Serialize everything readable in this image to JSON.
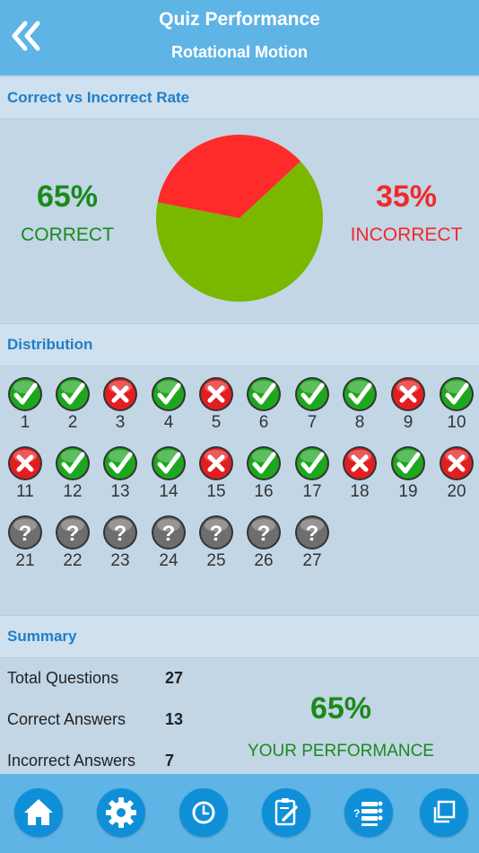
{
  "header": {
    "title": "Quiz Performance",
    "subtitle": "Rotational Motion",
    "back_icon": "double-chevron-left-icon"
  },
  "rate": {
    "section_title": "Correct vs Incorrect Rate",
    "correct_pct": "65%",
    "correct_label": "CORRECT",
    "incorrect_pct": "35%",
    "incorrect_label": "INCORRECT",
    "correct_fraction": 0.65,
    "colors": {
      "correct": "#7ab800",
      "incorrect": "#ff2a2a"
    }
  },
  "distribution": {
    "section_title": "Distribution",
    "items": [
      {
        "n": "1",
        "s": "correct"
      },
      {
        "n": "2",
        "s": "correct"
      },
      {
        "n": "3",
        "s": "incorrect"
      },
      {
        "n": "4",
        "s": "correct"
      },
      {
        "n": "5",
        "s": "incorrect"
      },
      {
        "n": "6",
        "s": "correct"
      },
      {
        "n": "7",
        "s": "correct"
      },
      {
        "n": "8",
        "s": "correct"
      },
      {
        "n": "9",
        "s": "incorrect"
      },
      {
        "n": "10",
        "s": "correct"
      },
      {
        "n": "11",
        "s": "incorrect"
      },
      {
        "n": "12",
        "s": "correct"
      },
      {
        "n": "13",
        "s": "correct"
      },
      {
        "n": "14",
        "s": "correct"
      },
      {
        "n": "15",
        "s": "incorrect"
      },
      {
        "n": "16",
        "s": "correct"
      },
      {
        "n": "17",
        "s": "correct"
      },
      {
        "n": "18",
        "s": "incorrect"
      },
      {
        "n": "19",
        "s": "correct"
      },
      {
        "n": "20",
        "s": "incorrect"
      },
      {
        "n": "21",
        "s": "unanswered"
      },
      {
        "n": "22",
        "s": "unanswered"
      },
      {
        "n": "23",
        "s": "unanswered"
      },
      {
        "n": "24",
        "s": "unanswered"
      },
      {
        "n": "25",
        "s": "unanswered"
      },
      {
        "n": "26",
        "s": "unanswered"
      },
      {
        "n": "27",
        "s": "unanswered"
      }
    ]
  },
  "summary": {
    "section_title": "Summary",
    "total_label": "Total Questions",
    "total_value": "27",
    "correct_label": "Correct Answers",
    "correct_value": "13",
    "incorrect_label": "Incorrect Answers",
    "incorrect_value": "7",
    "performance_pct": "65%",
    "performance_label": "YOUR PERFORMANCE"
  },
  "toolbar": {
    "icons": [
      "home-icon",
      "settings-gear-icon",
      "clock-icon",
      "edit-notes-icon",
      "question-list-icon",
      "copy-icon"
    ]
  }
}
